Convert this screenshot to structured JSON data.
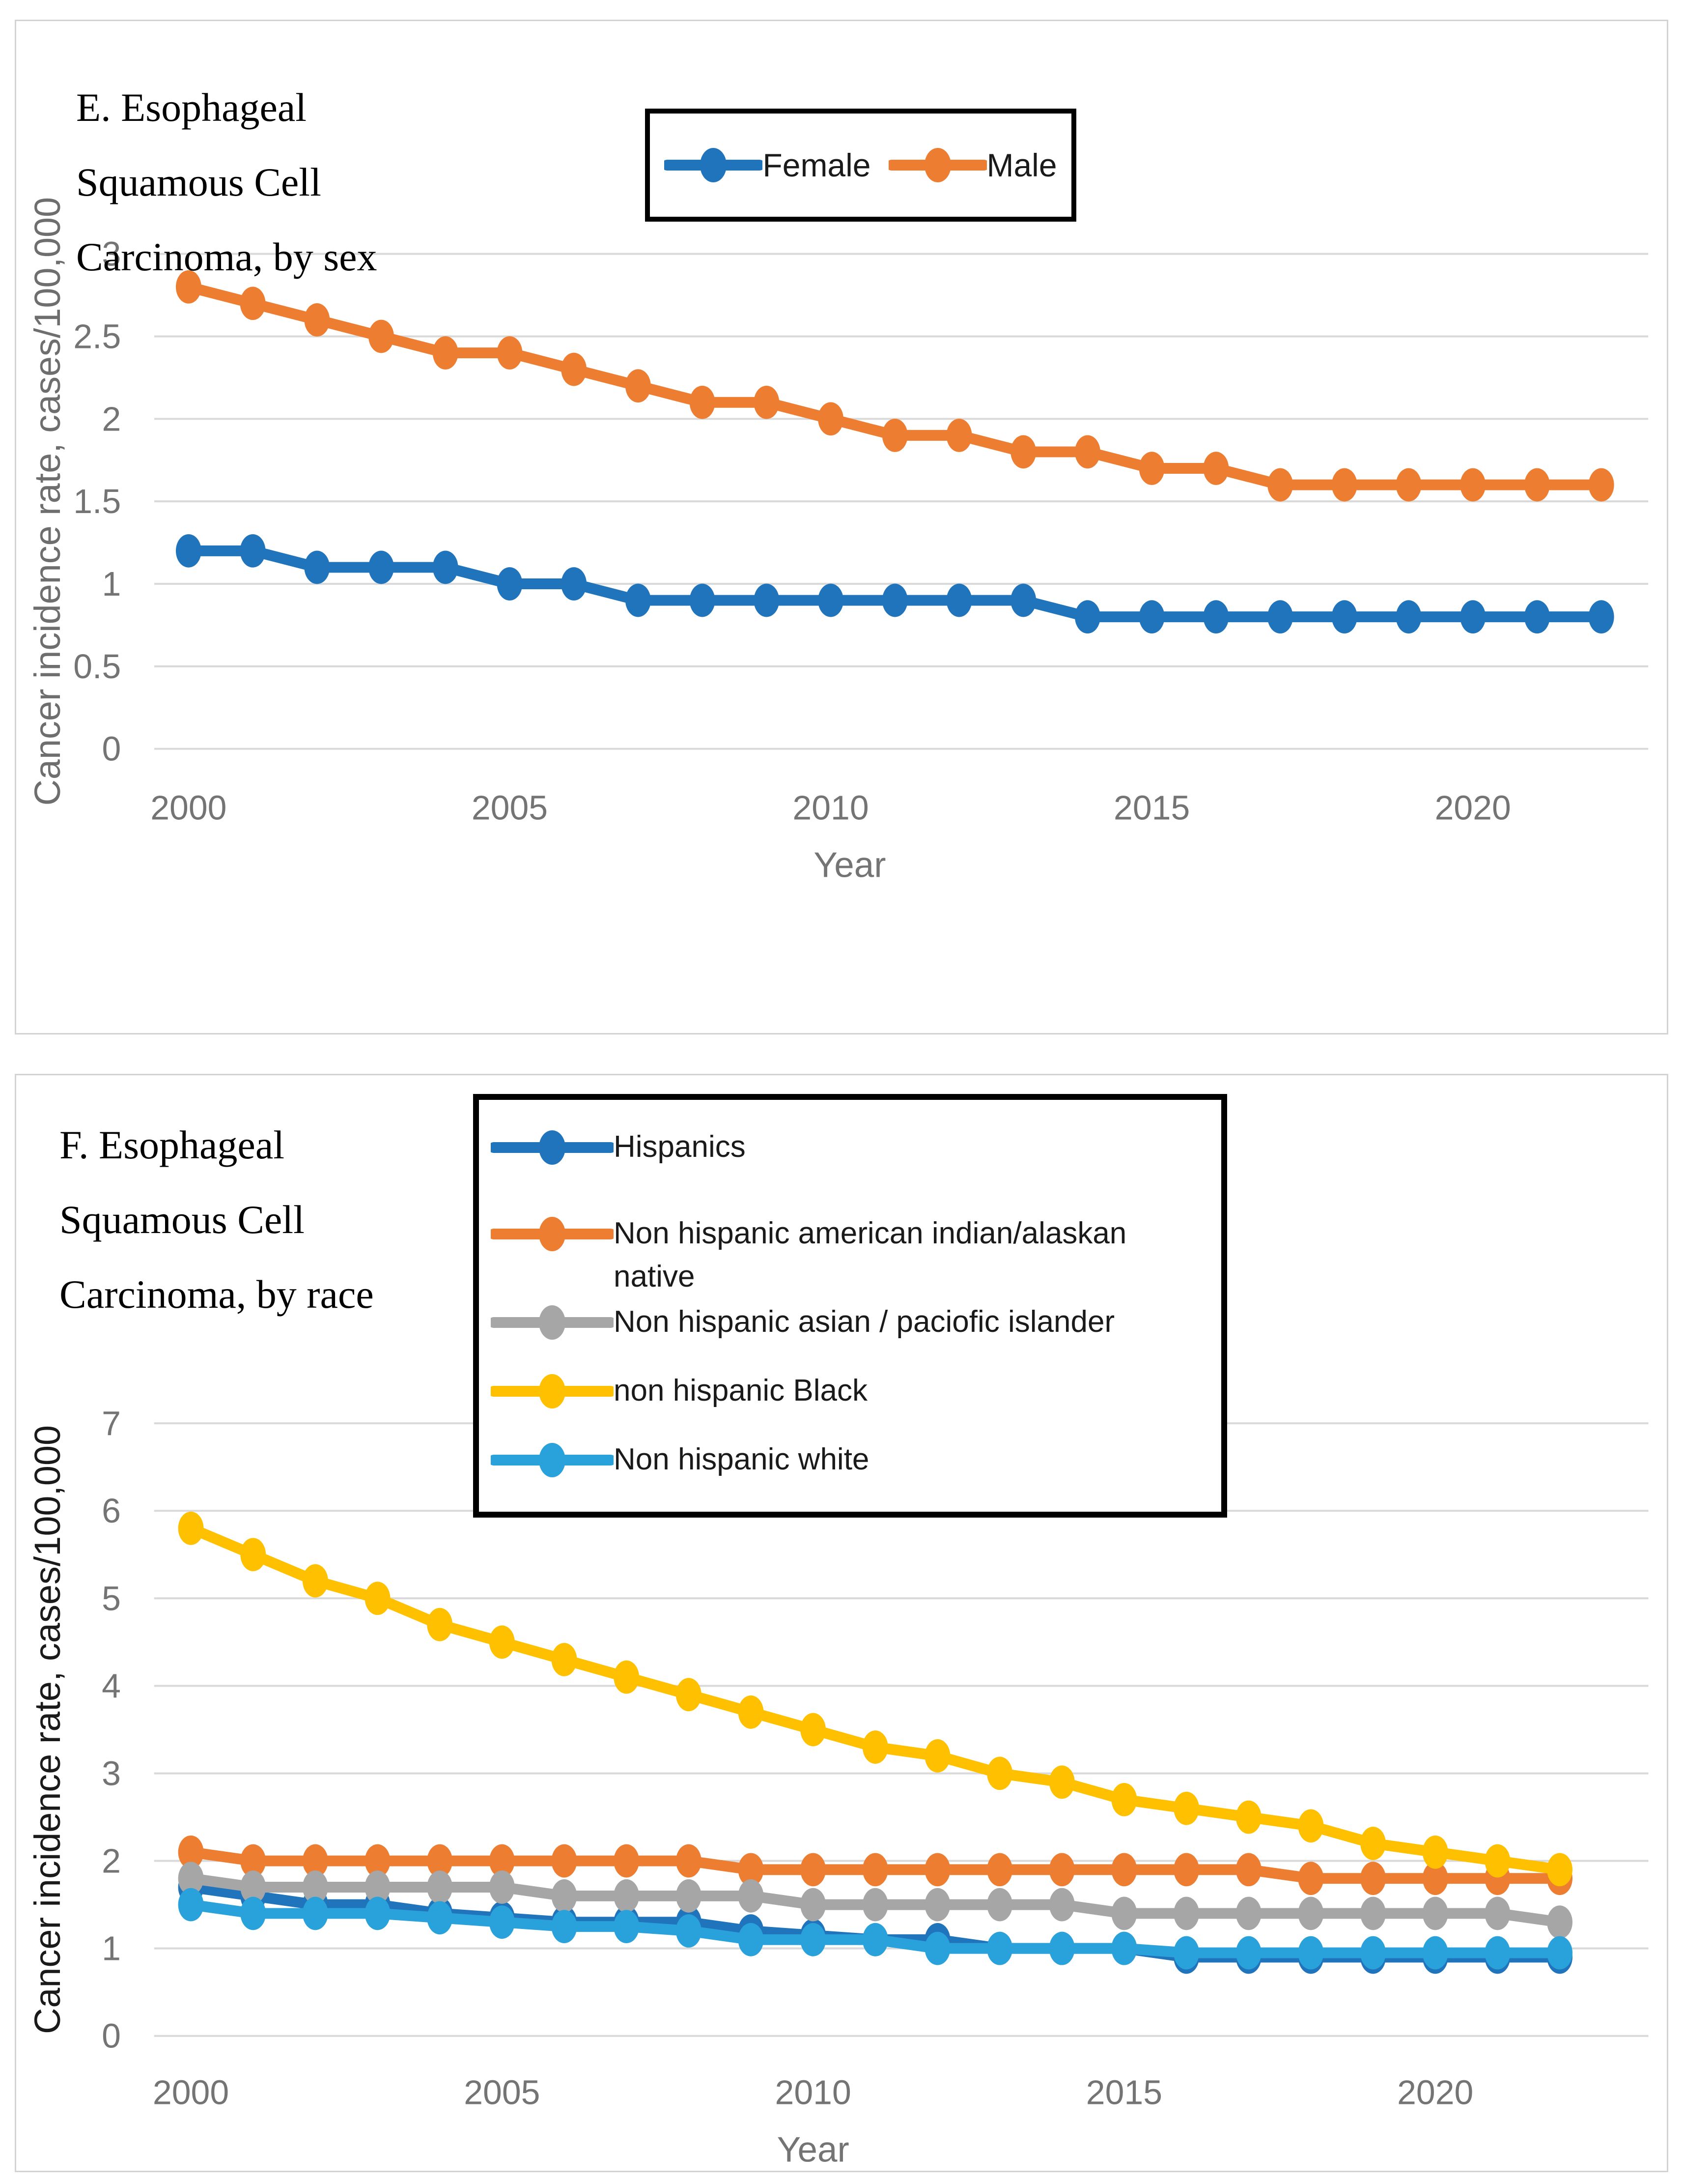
{
  "accent_colors": {
    "blue": "#2074BC",
    "orange": "#ED7D31",
    "gray": "#A6A6A6",
    "gold": "#FFC000",
    "light_blue": "#29A2DB",
    "gridline": "#D9D9D9",
    "tick_text": "#747474",
    "panel_border": "#D3D3D3"
  },
  "chart_data": [
    {
      "type": "line",
      "title": "E. Esophageal Squamous Cell Carcinoma, by sex",
      "title_lines": "E. Esophageal\nSquamous Cell\nCarcinoma, by sex",
      "xlabel": "Year",
      "ylabel": "Cancer incidence rate, cases/100,000",
      "ylim": [
        0,
        3
      ],
      "ytick_step": 0.5,
      "x": [
        2000,
        2001,
        2002,
        2003,
        2004,
        2005,
        2006,
        2007,
        2008,
        2009,
        2010,
        2011,
        2012,
        2013,
        2014,
        2015,
        2016,
        2017,
        2018,
        2019,
        2020,
        2021,
        2022
      ],
      "x_tick_labels": [
        2000,
        2005,
        2010,
        2015,
        2020
      ],
      "grid": true,
      "legend_position": "top-center-horizontal",
      "series": [
        {
          "name": "Female",
          "color": "#2074BC",
          "values": [
            1.2,
            1.2,
            1.1,
            1.1,
            1.1,
            1.0,
            1.0,
            0.9,
            0.9,
            0.9,
            0.9,
            0.9,
            0.9,
            0.9,
            0.8,
            0.8,
            0.8,
            0.8,
            0.8,
            0.8,
            0.8,
            0.8,
            0.8
          ]
        },
        {
          "name": "Male",
          "color": "#ED7D31",
          "values": [
            2.8,
            2.7,
            2.6,
            2.5,
            2.4,
            2.4,
            2.3,
            2.2,
            2.1,
            2.1,
            2.0,
            1.9,
            1.9,
            1.8,
            1.8,
            1.7,
            1.7,
            1.6,
            1.6,
            1.6,
            1.6,
            1.6,
            1.6
          ]
        }
      ]
    },
    {
      "type": "line",
      "title": "F. Esophageal Squamous Cell Carcinoma, by race",
      "title_lines": "F. Esophageal\nSquamous Cell\nCarcinoma, by race",
      "xlabel": "Year",
      "ylabel": "Cancer incidence rate, cases/100,000",
      "ylim": [
        0,
        7
      ],
      "ytick_step": 1,
      "x": [
        2000,
        2001,
        2002,
        2003,
        2004,
        2005,
        2006,
        2007,
        2008,
        2009,
        2010,
        2011,
        2012,
        2013,
        2014,
        2015,
        2016,
        2017,
        2018,
        2019,
        2020,
        2021,
        2022
      ],
      "x_tick_labels": [
        2000,
        2005,
        2010,
        2015,
        2020
      ],
      "grid": true,
      "legend_position": "top-left-vertical",
      "series": [
        {
          "name": "Hispanics",
          "legend_label": "Hispanics",
          "color": "#2074BC",
          "values": [
            1.7,
            1.6,
            1.5,
            1.5,
            1.4,
            1.35,
            1.3,
            1.3,
            1.3,
            1.2,
            1.15,
            1.1,
            1.1,
            1.0,
            1.0,
            1.0,
            0.9,
            0.9,
            0.9,
            0.9,
            0.9,
            0.9,
            0.9
          ]
        },
        {
          "name": "Non hispanic american indian/alaskan native",
          "legend_label": "Non hispanic american indian/alaskan\nnative",
          "color": "#ED7D31",
          "values": [
            2.1,
            2.0,
            2.0,
            2.0,
            2.0,
            2.0,
            2.0,
            2.0,
            2.0,
            1.9,
            1.9,
            1.9,
            1.9,
            1.9,
            1.9,
            1.9,
            1.9,
            1.9,
            1.8,
            1.8,
            1.8,
            1.8,
            1.8
          ]
        },
        {
          "name": "Non hispanic asian / paciofic islander",
          "legend_label": "Non hispanic asian / paciofic islander",
          "color": "#A6A6A6",
          "values": [
            1.8,
            1.7,
            1.7,
            1.7,
            1.7,
            1.7,
            1.6,
            1.6,
            1.6,
            1.6,
            1.5,
            1.5,
            1.5,
            1.5,
            1.5,
            1.4,
            1.4,
            1.4,
            1.4,
            1.4,
            1.4,
            1.4,
            1.3
          ]
        },
        {
          "name": "non hispanic Black",
          "legend_label": "non hispanic Black",
          "color": "#FFC000",
          "values": [
            5.8,
            5.5,
            5.2,
            5.0,
            4.7,
            4.5,
            4.3,
            4.1,
            3.9,
            3.7,
            3.5,
            3.3,
            3.2,
            3.0,
            2.9,
            2.7,
            2.6,
            2.5,
            2.4,
            2.2,
            2.1,
            2.0,
            1.9
          ]
        },
        {
          "name": "Non hispanic white",
          "legend_label": "Non hispanic white",
          "color": "#29A2DB",
          "values": [
            1.5,
            1.4,
            1.4,
            1.4,
            1.35,
            1.3,
            1.25,
            1.25,
            1.2,
            1.1,
            1.1,
            1.1,
            1.0,
            1.0,
            1.0,
            1.0,
            0.95,
            0.95,
            0.95,
            0.95,
            0.95,
            0.95,
            0.95
          ]
        }
      ]
    }
  ]
}
